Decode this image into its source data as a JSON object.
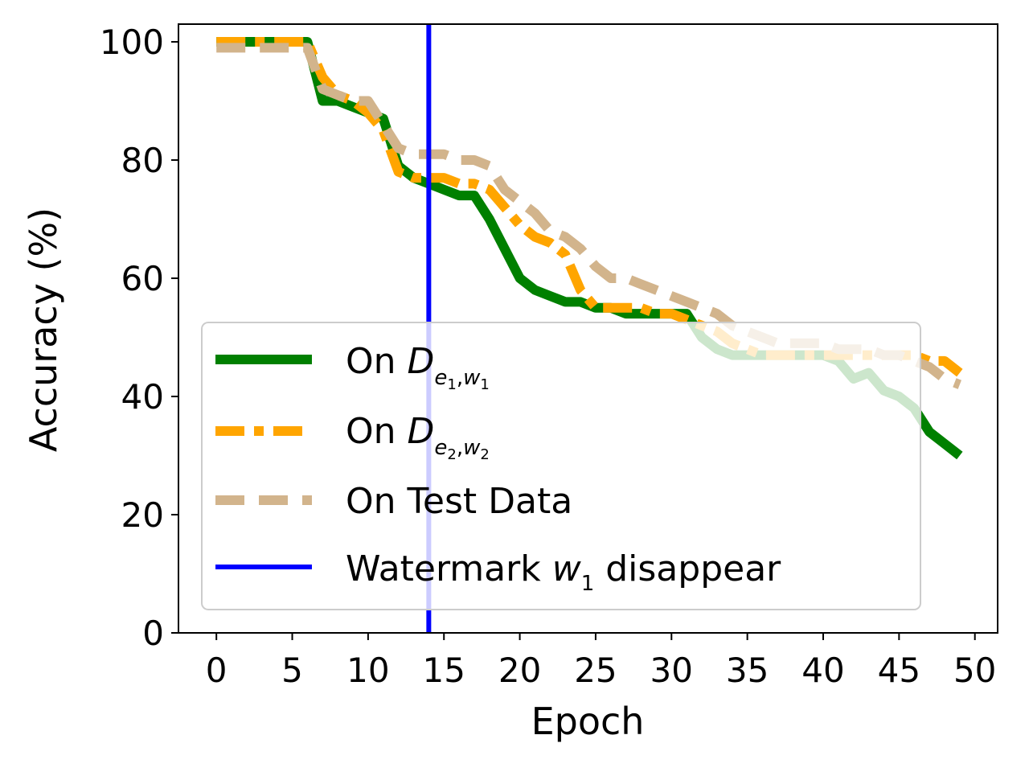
{
  "chart_data": {
    "type": "line",
    "xlabel": "Epoch",
    "ylabel": "Accuracy (%)",
    "xlim": [
      -2.5,
      51.5
    ],
    "ylim": [
      0,
      103
    ],
    "xticks": [
      0,
      5,
      10,
      15,
      20,
      25,
      30,
      35,
      40,
      45,
      50
    ],
    "yticks": [
      0,
      20,
      40,
      60,
      80,
      100
    ],
    "grid": false,
    "legend_position": "lower-left",
    "x": [
      0,
      1,
      2,
      3,
      4,
      5,
      6,
      7,
      8,
      9,
      10,
      11,
      12,
      13,
      14,
      15,
      16,
      17,
      18,
      19,
      20,
      21,
      22,
      23,
      24,
      25,
      26,
      27,
      28,
      29,
      30,
      31,
      32,
      33,
      34,
      35,
      36,
      37,
      38,
      39,
      40,
      41,
      42,
      43,
      44,
      45,
      46,
      47,
      48,
      49
    ],
    "series": [
      {
        "name": "On D_{e1,w1}",
        "color": "#008000",
        "style": "solid",
        "values": [
          100,
          100,
          100,
          100,
          100,
          100,
          100,
          90,
          90,
          89,
          88,
          87,
          79,
          77,
          76,
          75,
          74,
          74,
          70,
          65,
          60,
          58,
          57,
          56,
          56,
          55,
          55,
          54,
          54,
          54,
          54,
          54,
          50,
          48,
          47,
          47,
          47,
          47,
          47,
          47,
          47,
          46,
          43,
          44,
          41,
          40,
          38,
          34,
          32,
          30
        ]
      },
      {
        "name": "On D_{e2,w2}",
        "color": "#ffa500",
        "style": "dashdot",
        "values": [
          100,
          100,
          100,
          100,
          100,
          100,
          100,
          94,
          91,
          90,
          88,
          85,
          78,
          77,
          77,
          77,
          76,
          76,
          75,
          72,
          69,
          67,
          66,
          64,
          58,
          55,
          55,
          55,
          55,
          54,
          54,
          53,
          52,
          51,
          49,
          48,
          47,
          47,
          47,
          47,
          47,
          47,
          47,
          47,
          47,
          47,
          47,
          46,
          46,
          44
        ]
      },
      {
        "name": "On Test Data",
        "color": "#d2b48c",
        "style": "dashed",
        "values": [
          99,
          99,
          99,
          99,
          99,
          99,
          99,
          92,
          91,
          90,
          90,
          86,
          82,
          81,
          81,
          81,
          80,
          80,
          79,
          75,
          73,
          71,
          68,
          67,
          65,
          62,
          60,
          60,
          59,
          58,
          57,
          56,
          55,
          54,
          52,
          51,
          50,
          49,
          49,
          49,
          49,
          48,
          48,
          48,
          47,
          47,
          46,
          45,
          43,
          42
        ]
      }
    ],
    "vline": {
      "name": "Watermark w1 disappear",
      "x": 14,
      "color": "#0000ff"
    },
    "legend": {
      "entries": [
        {
          "prefix": "On ",
          "main": "D",
          "sub_e": "e",
          "sub_e_idx": "1",
          "comma": ",",
          "sub_w": "w",
          "sub_w_idx": "1"
        },
        {
          "prefix": "On ",
          "main": "D",
          "sub_e": "e",
          "sub_e_idx": "2",
          "comma": ",",
          "sub_w": "w",
          "sub_w_idx": "2"
        },
        {
          "text": "On Test Data"
        },
        {
          "prefix": "Watermark ",
          "main": "w",
          "idx": "1",
          "suffix": " disappear"
        }
      ]
    }
  }
}
